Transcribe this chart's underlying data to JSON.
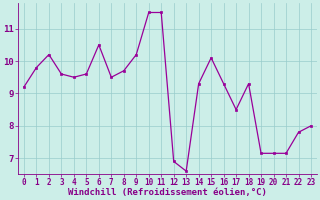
{
  "x": [
    0,
    1,
    2,
    3,
    4,
    5,
    6,
    7,
    8,
    9,
    10,
    11,
    12,
    13,
    14,
    15,
    16,
    17,
    18,
    19,
    20,
    21,
    22,
    23
  ],
  "y": [
    9.2,
    9.8,
    10.2,
    9.6,
    9.5,
    9.6,
    10.5,
    9.5,
    9.7,
    10.2,
    11.5,
    11.5,
    6.9,
    6.6,
    9.3,
    10.1,
    9.3,
    8.5,
    9.3,
    7.15,
    7.15,
    7.15,
    7.8,
    8.0
  ],
  "line_color": "#990099",
  "marker_color": "#990099",
  "bg_color": "#cceee8",
  "grid_color": "#99cccc",
  "xlabel": "Windchill (Refroidissement éolien,°C)",
  "xlim": [
    -0.5,
    23.5
  ],
  "ylim": [
    6.5,
    11.8
  ],
  "yticks": [
    7,
    8,
    9,
    10,
    11
  ],
  "xticks": [
    0,
    1,
    2,
    3,
    4,
    5,
    6,
    7,
    8,
    9,
    10,
    11,
    12,
    13,
    14,
    15,
    16,
    17,
    18,
    19,
    20,
    21,
    22,
    23
  ],
  "figsize": [
    3.2,
    2.0
  ],
  "dpi": 100,
  "text_color": "#880088",
  "tick_fontsize": 5.5,
  "ylabel_fontsize": 6.5,
  "xlabel_fontsize": 6.5
}
